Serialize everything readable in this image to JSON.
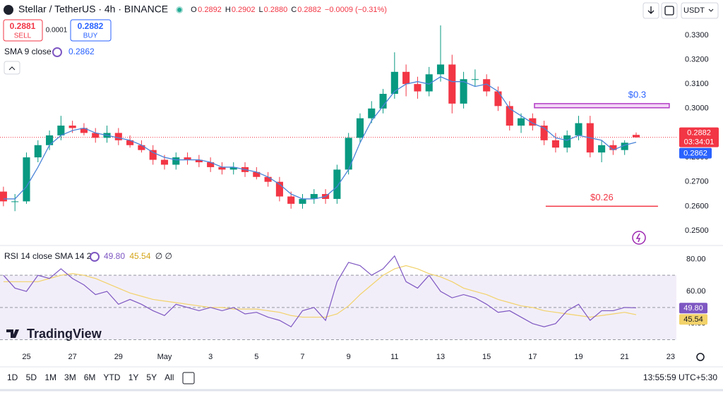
{
  "toolbar": {
    "currency": "USDT"
  },
  "trade": {
    "sell_price": "0.2881",
    "sell": "SELL",
    "spread": "0.0001",
    "buy_price": "0.2882",
    "buy": "BUY"
  },
  "logo": "TradingView",
  "ranges": [
    "1D",
    "5D",
    "1M",
    "3M",
    "6M",
    "YTD",
    "1Y",
    "5Y",
    "All"
  ],
  "clock": "13:55:59 UTC+5:30",
  "chart_data": {
    "type": "candlestick",
    "title": "Stellar / TetherUS · 4h · BINANCE",
    "ohlc": [
      {
        "key": "O",
        "value": "0.2892"
      },
      {
        "key": "H",
        "value": "0.2902"
      },
      {
        "key": "L",
        "value": "0.2880"
      },
      {
        "key": "C",
        "value": "0.2882"
      }
    ],
    "change": "−0.0009 (−0.31%)",
    "up_color": "#089981",
    "down_color": "#f23645",
    "x": [
      24,
      24.5,
      25,
      25.5,
      26,
      26.5,
      27,
      27.5,
      28,
      28.5,
      29,
      29.5,
      30,
      30.5,
      31,
      31.5,
      32,
      32.5,
      33,
      33.5,
      34,
      34.5,
      35,
      35.5,
      36,
      36.5,
      37,
      37.5,
      38,
      38.5,
      39,
      39.5,
      40,
      40.5,
      41,
      41.5,
      42,
      42.5,
      43,
      43.5,
      44,
      44.5,
      45,
      45.5,
      46,
      46.5,
      47,
      47.5,
      48,
      48.5,
      49,
      49.5,
      50,
      50.5,
      51,
      51.5
    ],
    "open": [
      0.266,
      0.262,
      0.262,
      0.28,
      0.285,
      0.289,
      0.293,
      0.292,
      0.29,
      0.288,
      0.29,
      0.287,
      0.285,
      0.283,
      0.279,
      0.277,
      0.28,
      0.279,
      0.278,
      0.276,
      0.275,
      0.276,
      0.274,
      0.272,
      0.27,
      0.264,
      0.261,
      0.263,
      0.265,
      0.263,
      0.275,
      0.288,
      0.296,
      0.3,
      0.306,
      0.315,
      0.31,
      0.307,
      0.314,
      0.318,
      0.302,
      0.312,
      0.312,
      0.307,
      0.301,
      0.293,
      0.296,
      0.293,
      0.287,
      0.284,
      0.289,
      0.294,
      0.282,
      0.285,
      0.283,
      0.2892
    ],
    "high": [
      0.268,
      0.265,
      0.282,
      0.287,
      0.291,
      0.297,
      0.295,
      0.294,
      0.292,
      0.293,
      0.292,
      0.289,
      0.287,
      0.285,
      0.281,
      0.282,
      0.282,
      0.281,
      0.28,
      0.278,
      0.278,
      0.278,
      0.276,
      0.274,
      0.272,
      0.266,
      0.265,
      0.267,
      0.267,
      0.277,
      0.29,
      0.298,
      0.303,
      0.308,
      0.323,
      0.318,
      0.313,
      0.317,
      0.334,
      0.322,
      0.315,
      0.316,
      0.314,
      0.309,
      0.303,
      0.298,
      0.298,
      0.295,
      0.29,
      0.291,
      0.297,
      0.297,
      0.287,
      0.287,
      0.287,
      0.2902
    ],
    "low": [
      0.26,
      0.258,
      0.261,
      0.278,
      0.283,
      0.287,
      0.29,
      0.289,
      0.286,
      0.286,
      0.285,
      0.284,
      0.282,
      0.277,
      0.275,
      0.275,
      0.277,
      0.276,
      0.274,
      0.273,
      0.273,
      0.272,
      0.271,
      0.268,
      0.262,
      0.259,
      0.259,
      0.261,
      0.261,
      0.261,
      0.273,
      0.286,
      0.294,
      0.298,
      0.304,
      0.305,
      0.304,
      0.305,
      0.311,
      0.298,
      0.3,
      0.309,
      0.305,
      0.299,
      0.291,
      0.29,
      0.291,
      0.285,
      0.282,
      0.282,
      0.287,
      0.28,
      0.278,
      0.281,
      0.281,
      0.288
    ],
    "close": [
      0.262,
      0.262,
      0.28,
      0.285,
      0.289,
      0.293,
      0.292,
      0.29,
      0.288,
      0.29,
      0.287,
      0.285,
      0.283,
      0.279,
      0.277,
      0.28,
      0.279,
      0.278,
      0.276,
      0.275,
      0.276,
      0.274,
      0.272,
      0.27,
      0.264,
      0.261,
      0.263,
      0.265,
      0.263,
      0.275,
      0.288,
      0.296,
      0.3,
      0.306,
      0.315,
      0.31,
      0.307,
      0.314,
      0.318,
      0.302,
      0.312,
      0.312,
      0.307,
      0.301,
      0.293,
      0.296,
      0.293,
      0.287,
      0.284,
      0.289,
      0.294,
      0.282,
      0.285,
      0.283,
      0.286,
      0.2882
    ],
    "countdown": "03:34:01",
    "sma": {
      "name": "SMA 9 close",
      "color": "#2962ff",
      "line_color": "#4a84d8",
      "values": [
        0.263,
        0.263,
        0.268,
        0.276,
        0.285,
        0.289,
        0.291,
        0.292,
        0.29,
        0.289,
        0.288,
        0.287,
        0.285,
        0.282,
        0.28,
        0.279,
        0.279,
        0.279,
        0.278,
        0.276,
        0.276,
        0.275,
        0.274,
        0.272,
        0.269,
        0.265,
        0.263,
        0.263,
        0.264,
        0.268,
        0.275,
        0.286,
        0.295,
        0.301,
        0.307,
        0.31,
        0.311,
        0.31,
        0.313,
        0.311,
        0.311,
        0.309,
        0.31,
        0.307,
        0.3,
        0.297,
        0.294,
        0.292,
        0.288,
        0.287,
        0.289,
        0.288,
        0.287,
        0.283,
        0.285,
        0.2862
      ]
    },
    "xlim": [
      23.85,
      53.25
    ],
    "xticks": [
      25,
      27,
      29,
      {
        "value": 31,
        "label": "May"
      },
      {
        "value": 33,
        "label": "3"
      },
      {
        "value": 35,
        "label": "5"
      },
      {
        "value": 37,
        "label": "7"
      },
      {
        "value": 39,
        "label": "9"
      },
      {
        "value": 41,
        "label": "11"
      },
      {
        "value": 43,
        "label": "13"
      },
      {
        "value": 45,
        "label": "15"
      },
      {
        "value": 47,
        "label": "17"
      },
      {
        "value": 49,
        "label": "19"
      },
      {
        "value": 51,
        "label": "21"
      },
      {
        "value": 53,
        "label": "23"
      }
    ],
    "ylim": [
      0.2448,
      0.3444
    ],
    "yticks": [
      {
        "value": 0.25,
        "label": "0.2500"
      },
      {
        "value": 0.26,
        "label": "0.2600"
      },
      {
        "value": 0.27,
        "label": "0.2700"
      },
      {
        "value": 0.28,
        "label": "0.2800"
      },
      {
        "value": 0.29,
        "label": "0.2900"
      },
      {
        "value": 0.3,
        "label": "0.3000"
      },
      {
        "value": 0.31,
        "label": "0.3100"
      },
      {
        "value": 0.32,
        "label": "0.3200"
      },
      {
        "value": 0.33,
        "label": "0.3300"
      }
    ],
    "annotations": [
      {
        "type": "rect",
        "text": "$0.3",
        "x": [
          47.08,
          52.94
        ],
        "y": [
          0.3003,
          0.302
        ],
        "color": "#b33dc6",
        "fill": "#f3d6f7",
        "text_color": "#2962ff"
      },
      {
        "type": "line",
        "text": "$0.26",
        "x": [
          47.57,
          52.45
        ],
        "y": [
          0.26,
          0.26
        ],
        "color": "#f23645",
        "text_color": "#f23645"
      }
    ],
    "rsi": {
      "title": "RSI 14 close SMA 14 2",
      "color": "#7e57c2",
      "sma_color": "#f2d26a",
      "extra": "∅ ∅",
      "values": [
        70,
        62,
        60,
        70,
        68,
        74,
        68,
        64,
        58,
        60,
        52,
        55,
        52,
        48,
        45,
        52,
        50,
        48,
        50,
        48,
        50,
        46,
        47,
        44,
        42,
        38,
        48,
        50,
        42,
        66,
        78,
        76,
        70,
        74,
        82,
        66,
        62,
        70,
        60,
        56,
        58,
        56,
        52,
        47,
        48,
        44,
        40,
        38,
        40,
        48,
        52,
        42,
        48,
        48,
        50,
        49.8
      ],
      "value_label": "49.80",
      "sma_values": [
        66,
        66,
        66,
        66,
        68,
        70,
        71,
        70,
        68,
        65,
        62,
        59,
        57,
        55,
        54,
        53,
        52,
        51,
        50,
        50,
        49,
        49,
        49,
        48,
        47,
        45,
        44,
        44,
        44,
        46,
        51,
        58,
        64,
        70,
        74,
        76,
        74,
        71,
        69,
        66,
        62,
        60,
        58,
        55,
        53,
        51,
        50,
        48,
        47,
        46,
        45,
        44,
        45,
        46,
        47,
        45.54
      ],
      "sma_value_label": "45.54",
      "ylim": [
        27.6,
        87.6
      ],
      "yticks": [
        {
          "value": 40,
          "label": "40.00"
        },
        {
          "value": 60,
          "label": "60.00"
        },
        {
          "value": 80,
          "label": "80.00"
        }
      ],
      "band": [
        30,
        70
      ],
      "midline": 50
    }
  }
}
